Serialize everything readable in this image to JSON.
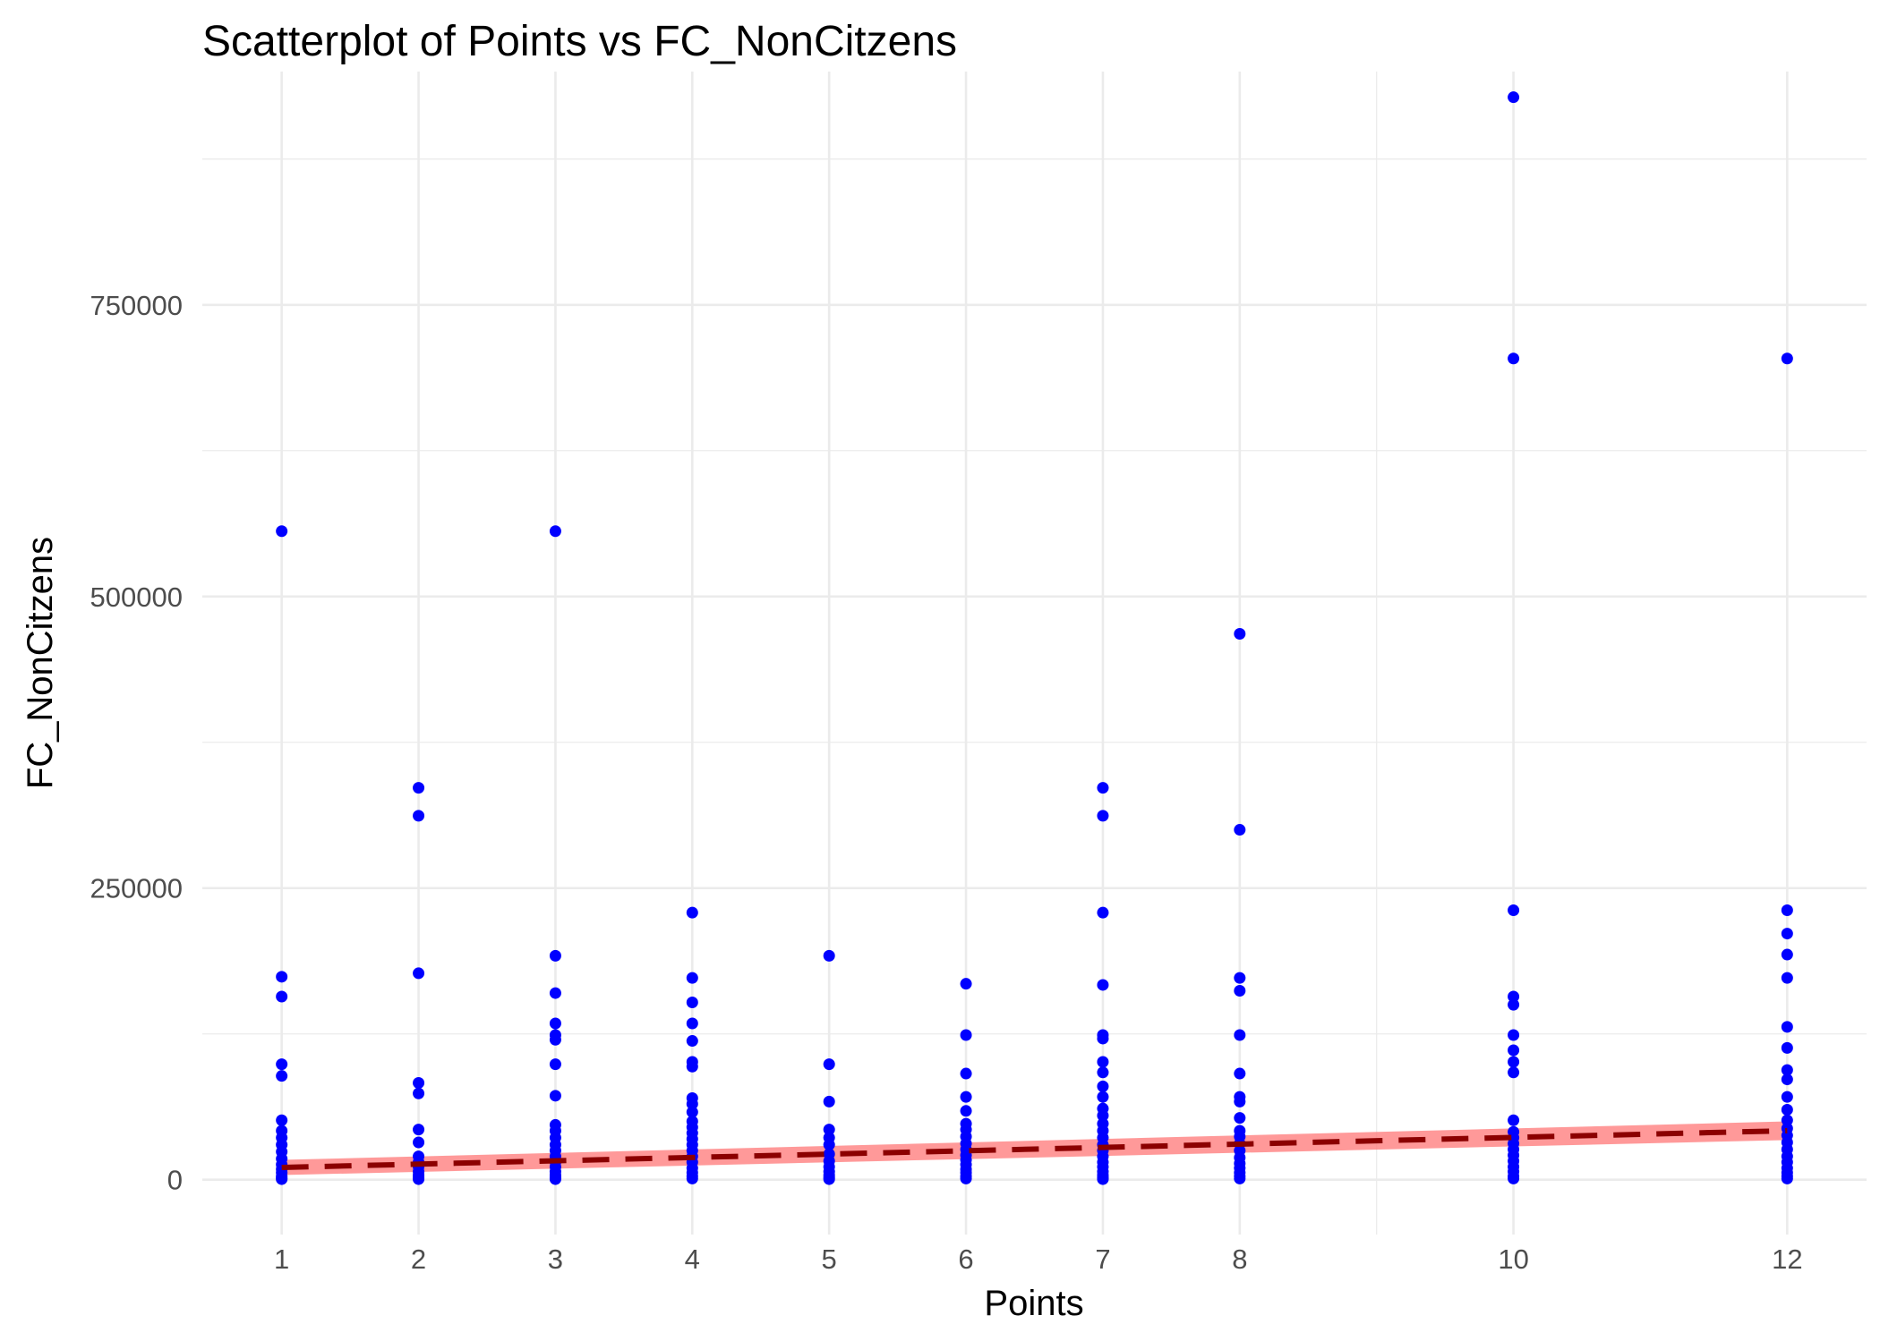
{
  "chart_data": {
    "type": "scatter",
    "title": "Scatterplot of Points vs  FC_NonCitzens",
    "xlabel": "Points",
    "ylabel": "FC_NonCitzens",
    "xlim": [
      0.42,
      12.58
    ],
    "ylim": [
      -47000,
      950000
    ],
    "x_ticks": [
      1,
      2,
      3,
      4,
      5,
      6,
      7,
      8,
      10,
      12
    ],
    "x_minor": [
      9
    ],
    "y_ticks": [
      0,
      250000,
      500000,
      750000
    ],
    "y_tick_labels": [
      "0",
      "250000",
      "500000",
      "750000"
    ],
    "y_minor": [
      125000,
      375000,
      625000,
      875000
    ],
    "grid": true,
    "point_color": "#0000ff",
    "trend": {
      "type": "linear",
      "x": [
        1,
        12
      ],
      "y": [
        10500,
        42000
      ],
      "band_lower": [
        4000,
        34000
      ],
      "band_upper": [
        17000,
        50000
      ],
      "line_color": "#8b0000",
      "band_color": "#ff7f7f",
      "linestyle": "dashed"
    },
    "points": [
      {
        "x": 1,
        "y": [
          556000,
          174000,
          157000,
          99000,
          89000,
          51000,
          42000,
          36000,
          30000,
          24000,
          18000,
          13000,
          9000,
          6000,
          3000,
          1500,
          500
        ]
      },
      {
        "x": 2,
        "y": [
          336000,
          312000,
          177000,
          83000,
          74000,
          43000,
          32000,
          20000,
          15000,
          11000,
          7000,
          4000,
          2000,
          500
        ]
      },
      {
        "x": 3,
        "y": [
          556000,
          192000,
          160000,
          134000,
          124000,
          120000,
          99000,
          72000,
          47000,
          42000,
          36000,
          30000,
          25000,
          20000,
          15000,
          11000,
          7000,
          4000,
          2000,
          500
        ]
      },
      {
        "x": 4,
        "y": [
          229000,
          173000,
          152000,
          134000,
          119000,
          101000,
          97000,
          70000,
          65000,
          58000,
          50000,
          45000,
          40000,
          35000,
          30000,
          25000,
          20000,
          15000,
          10000,
          6000,
          3000,
          1000
        ]
      },
      {
        "x": 5,
        "y": [
          192000,
          99000,
          67000,
          43000,
          36000,
          30000,
          22000,
          16000,
          11000,
          7000,
          4000,
          2000,
          500
        ]
      },
      {
        "x": 6,
        "y": [
          168000,
          124000,
          91000,
          71000,
          59000,
          48000,
          43000,
          37000,
          31000,
          26000,
          21000,
          17000,
          13000,
          9000,
          6000,
          3000,
          1000
        ]
      },
      {
        "x": 7,
        "y": [
          336000,
          312000,
          229000,
          167000,
          124000,
          121000,
          101000,
          92000,
          80000,
          71000,
          61000,
          55000,
          48000,
          42000,
          36000,
          30000,
          25000,
          20000,
          15000,
          11000,
          7000,
          4000,
          2000,
          500
        ]
      },
      {
        "x": 8,
        "y": [
          468000,
          300000,
          173000,
          162000,
          124000,
          91000,
          71000,
          67000,
          53000,
          42000,
          37000,
          31000,
          25000,
          19000,
          14000,
          10000,
          6000,
          3000,
          1000
        ]
      },
      {
        "x": 10,
        "y": [
          928000,
          704000,
          231000,
          157000,
          150000,
          124000,
          111000,
          101000,
          92000,
          51000,
          41000,
          36000,
          31000,
          26000,
          21000,
          16000,
          11000,
          7000,
          3000,
          1000
        ]
      },
      {
        "x": 12,
        "y": [
          704000,
          231000,
          211000,
          193000,
          173000,
          131000,
          113000,
          94000,
          86000,
          71000,
          60000,
          51000,
          44000,
          38000,
          32000,
          26000,
          20000,
          15000,
          10000,
          6000,
          3000,
          1000
        ]
      }
    ]
  }
}
